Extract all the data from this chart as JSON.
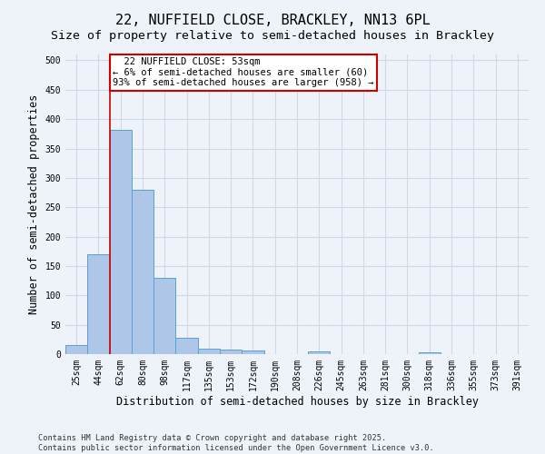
{
  "title1": "22, NUFFIELD CLOSE, BRACKLEY, NN13 6PL",
  "title2": "Size of property relative to semi-detached houses in Brackley",
  "xlabel": "Distribution of semi-detached houses by size in Brackley",
  "ylabel": "Number of semi-detached properties",
  "categories": [
    "25sqm",
    "44sqm",
    "62sqm",
    "80sqm",
    "98sqm",
    "117sqm",
    "135sqm",
    "153sqm",
    "172sqm",
    "190sqm",
    "208sqm",
    "226sqm",
    "245sqm",
    "263sqm",
    "281sqm",
    "300sqm",
    "318sqm",
    "336sqm",
    "355sqm",
    "373sqm",
    "391sqm"
  ],
  "values": [
    16,
    170,
    381,
    280,
    130,
    28,
    10,
    8,
    6,
    0,
    0,
    5,
    0,
    0,
    0,
    0,
    3,
    0,
    0,
    0,
    0
  ],
  "bar_color": "#aec6e8",
  "bar_edge_color": "#5a9fd4",
  "grid_color": "#d0d8e8",
  "background_color": "#eef2f9",
  "property_label": "22 NUFFIELD CLOSE: 53sqm",
  "pct_smaller": 6,
  "count_smaller": 60,
  "pct_larger": 93,
  "count_larger": 958,
  "annotation_box_color": "#ffffff",
  "annotation_box_edge": "#cc0000",
  "vline_color": "#cc0000",
  "vline_x_index": 1.5,
  "ylim": [
    0,
    510
  ],
  "yticks": [
    0,
    50,
    100,
    150,
    200,
    250,
    300,
    350,
    400,
    450,
    500
  ],
  "footnote1": "Contains HM Land Registry data © Crown copyright and database right 2025.",
  "footnote2": "Contains public sector information licensed under the Open Government Licence v3.0.",
  "title_fontsize": 11,
  "subtitle_fontsize": 9.5,
  "tick_fontsize": 7,
  "label_fontsize": 8.5,
  "annot_fontsize": 7.5
}
